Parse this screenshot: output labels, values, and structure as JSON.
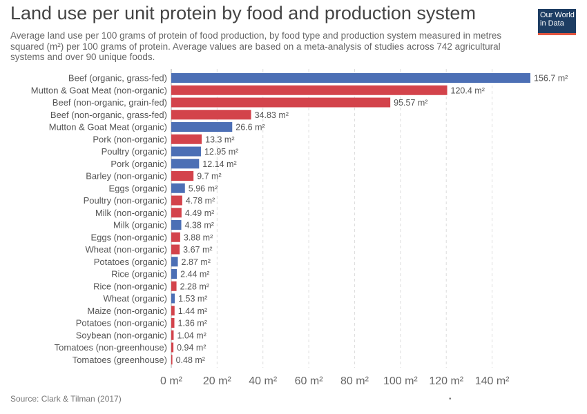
{
  "title": "Land use per unit protein by food and production system",
  "subtitle": "Average land use per 100 grams of protein of food production, by food type and production system measured in metres squared (m²) per 100 grams of protein. Average values are based on a meta-analysis of studies across 742 agricultural systems and over 90 unique foods.",
  "logo": {
    "line1": "Our World",
    "line2": "in Data"
  },
  "source": "Source: Clark & Tilman (2017)",
  "footer_dot": "•",
  "colors": {
    "organic": "#4c6fb5",
    "non_organic": "#d3434b"
  },
  "chart_data": {
    "type": "bar",
    "orientation": "horizontal",
    "title": "Land use per unit protein by food and production system",
    "categories": [
      "Beef (organic, grass-fed)",
      "Mutton & Goat Meat (non-organic)",
      "Beef (non-organic, grain-fed)",
      "Beef (non-organic, grass-fed)",
      "Mutton & Goat Meat (organic)",
      "Pork (non-organic)",
      "Poultry (organic)",
      "Pork (organic)",
      "Barley (non-organic)",
      "Eggs (organic)",
      "Poultry (non-organic)",
      "Milk (non-organic)",
      "Milk (organic)",
      "Eggs (non-organic)",
      "Wheat (non-organic)",
      "Potatoes (organic)",
      "Rice (organic)",
      "Rice (non-organic)",
      "Wheat (organic)",
      "Maize (non-organic)",
      "Potatoes (non-organic)",
      "Soybean (non-organic)",
      "Tomatoes (non-greenhouse)",
      "Tomatoes (greenhouse)"
    ],
    "values": [
      156.7,
      120.4,
      95.57,
      34.83,
      26.6,
      13.3,
      12.95,
      12.14,
      9.7,
      5.96,
      4.78,
      4.49,
      4.38,
      3.88,
      3.67,
      2.87,
      2.44,
      2.28,
      1.53,
      1.44,
      1.36,
      1.04,
      0.94,
      0.48
    ],
    "labels": [
      "156.7 m²",
      "120.4 m²",
      "95.57 m²",
      "34.83 m²",
      "26.6 m²",
      "13.3 m²",
      "12.95 m²",
      "12.14 m²",
      "9.7 m²",
      "5.96 m²",
      "4.78 m²",
      "4.49 m²",
      "4.38 m²",
      "3.88 m²",
      "3.67 m²",
      "2.87 m²",
      "2.44 m²",
      "2.28 m²",
      "1.53 m²",
      "1.44 m²",
      "1.36 m²",
      "1.04 m²",
      "0.94 m²",
      "0.48 m²"
    ],
    "organic": [
      true,
      false,
      false,
      false,
      true,
      false,
      true,
      true,
      false,
      true,
      false,
      false,
      true,
      false,
      false,
      true,
      true,
      false,
      true,
      false,
      false,
      false,
      false,
      false
    ],
    "xlim": [
      0,
      157
    ],
    "xticks": [
      0,
      20,
      40,
      60,
      80,
      100,
      120,
      140
    ],
    "xtick_labels": [
      "0 m²",
      "20 m²",
      "40 m²",
      "60 m²",
      "80 m²",
      "100 m²",
      "120 m²",
      "140 m²"
    ],
    "grid": true
  }
}
